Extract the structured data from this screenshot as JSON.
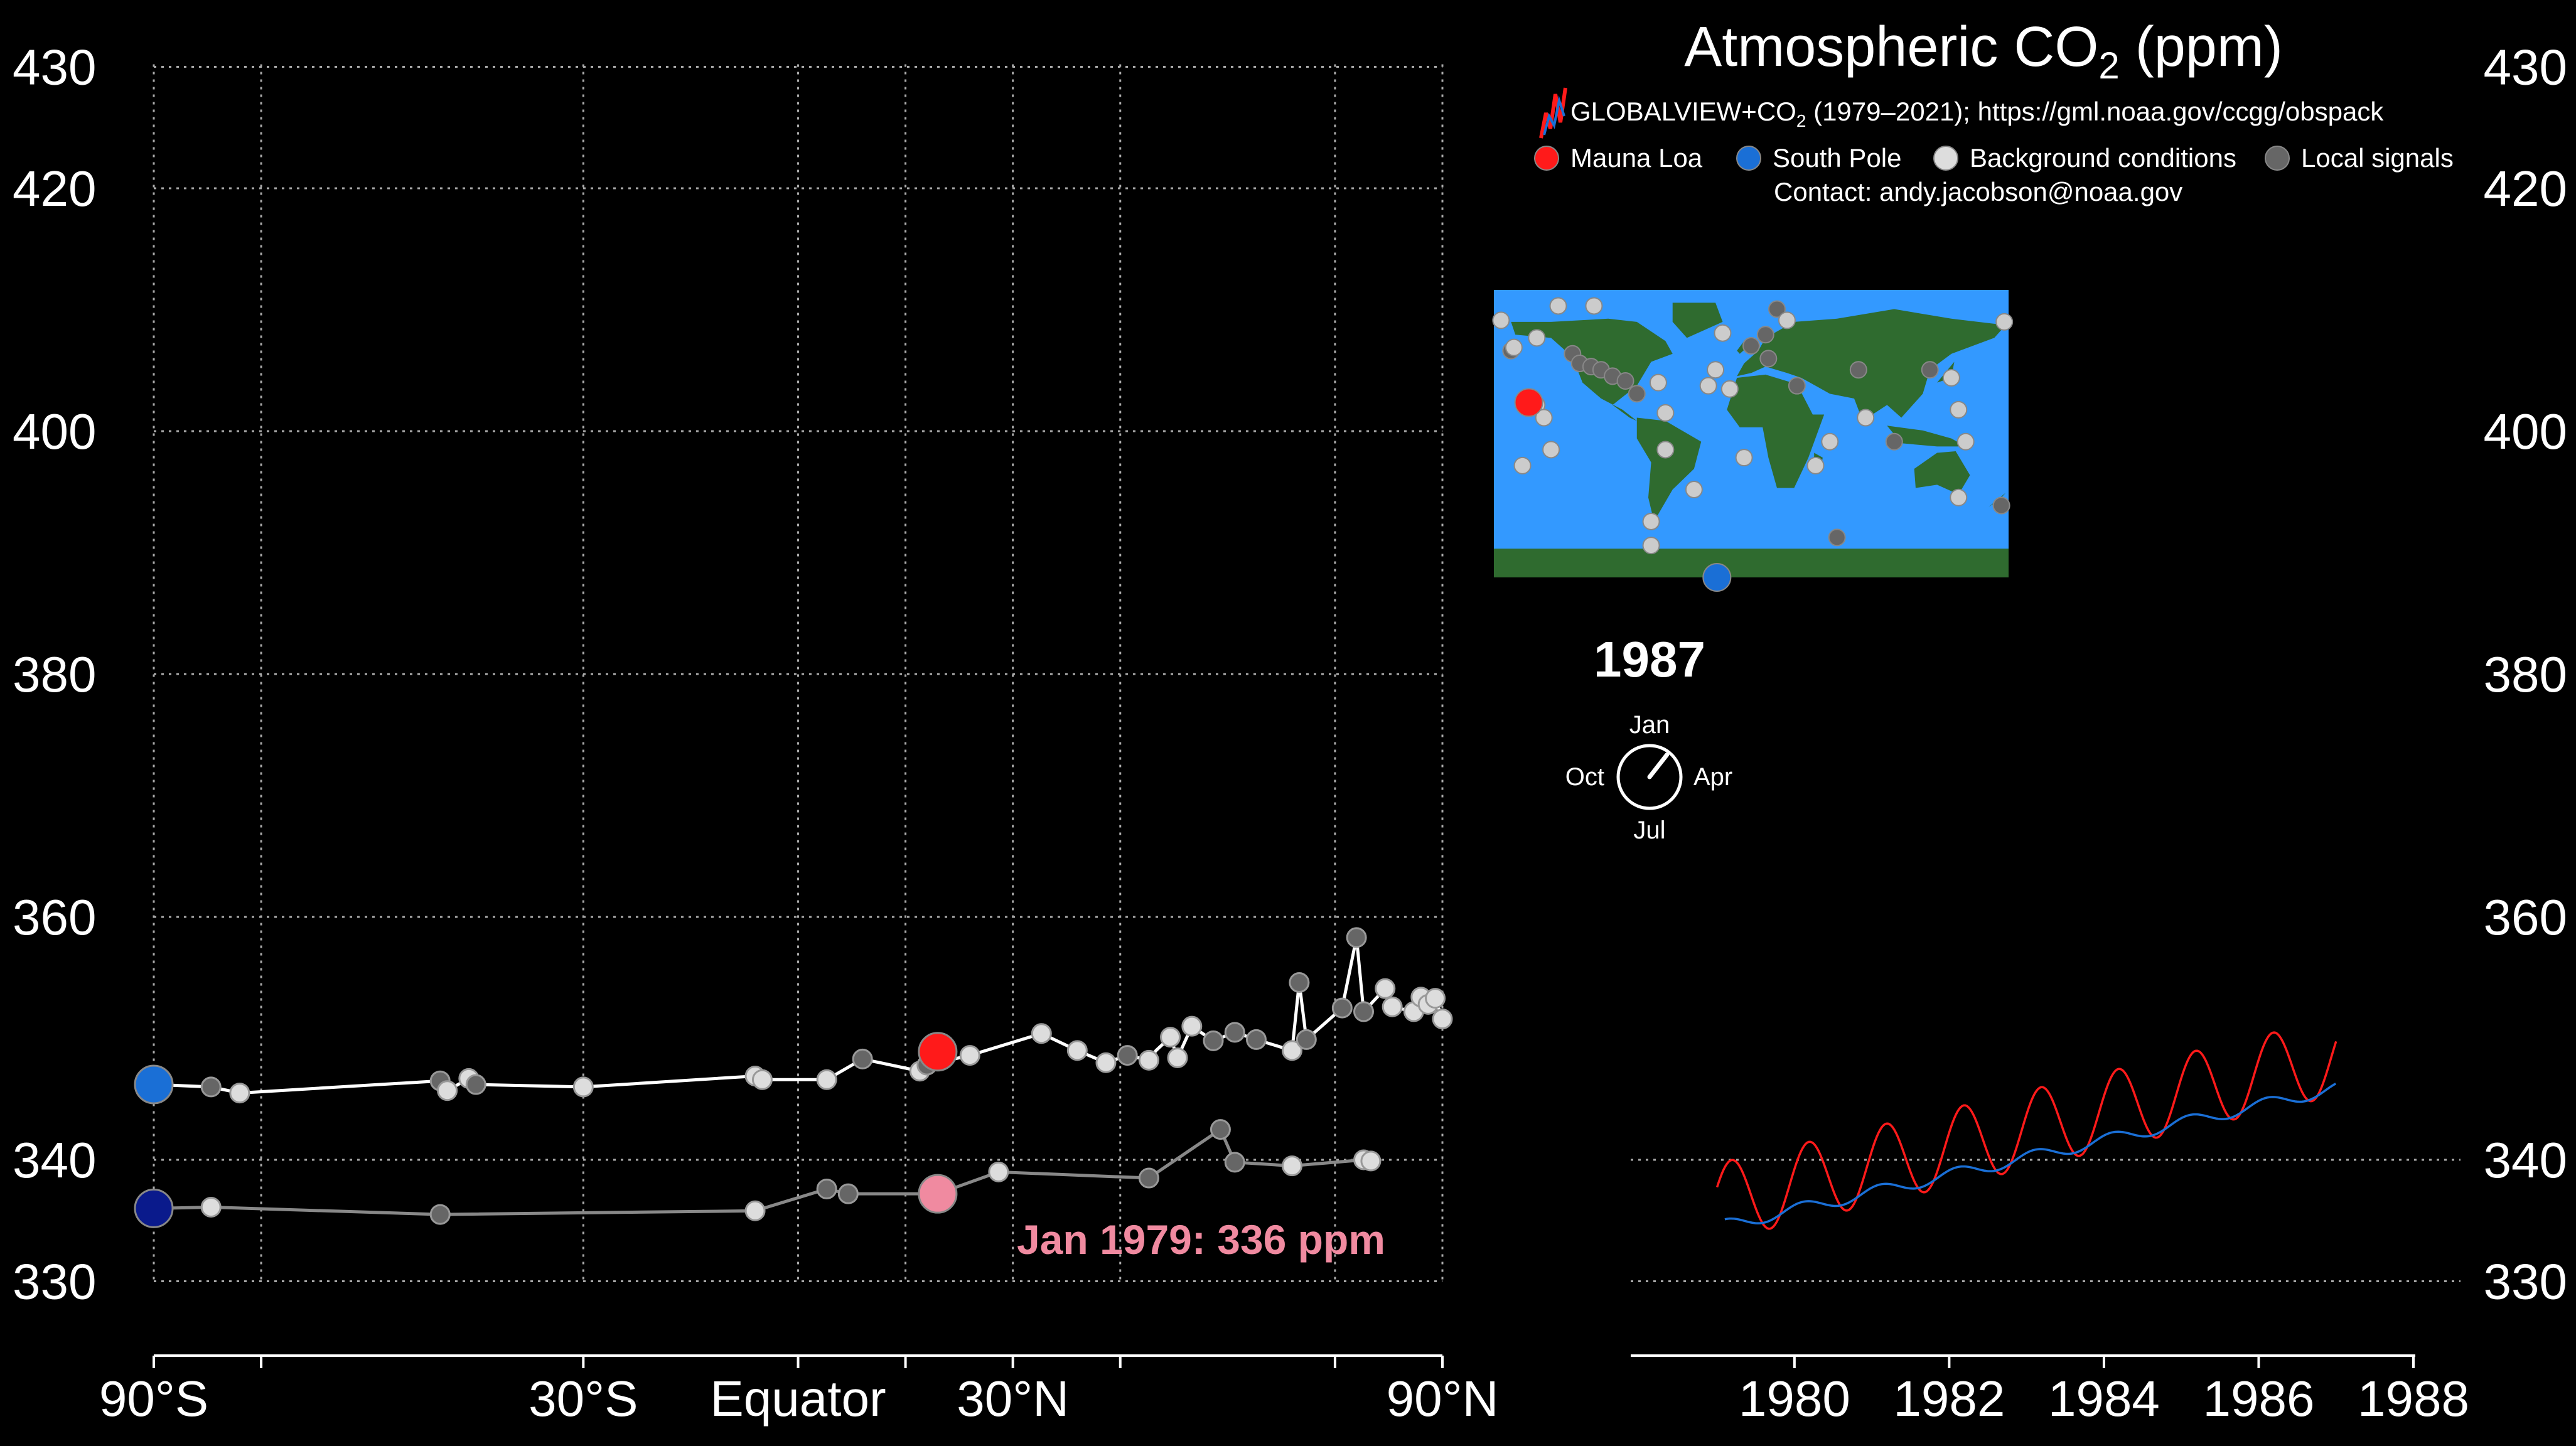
{
  "title": {
    "main": "Atmospheric CO",
    "sub": "2",
    "unit": " (ppm)"
  },
  "source": {
    "prefix": "GLOBALVIEW+CO",
    "sub": "2",
    "rest": " (1979–2021); https://gml.noaa.gov/ccgg/obspack"
  },
  "legend": [
    {
      "label": "Mauna Loa",
      "color": "#ff1a1a"
    },
    {
      "label": "South Pole",
      "color": "#1a6fd6"
    },
    {
      "label": "Background conditions",
      "color": "#dddddd"
    },
    {
      "label": "Local signals",
      "color": "#666666"
    }
  ],
  "contact": "Contact: andy.jacobson@noaa.gov",
  "year_display": "1987",
  "clock": {
    "top": "Jan",
    "right": "Apr",
    "bottom": "Jul",
    "left": "Oct",
    "month_fraction": 0.05
  },
  "annotation": "Jan 1979: 336 ppm",
  "colors": {
    "mauna_loa": "#ff1a1a",
    "south_pole": "#1a6fd6",
    "sp_1979": "#0a1a8c",
    "ml_1979": "#f08aa0",
    "ocean": "#3399ff",
    "land": "#2f6b2f"
  },
  "chart_data": [
    {
      "type": "line",
      "xlabel": "",
      "ylabel": "",
      "ylim": [
        325,
        432
      ],
      "xlim": [
        -90,
        90
      ],
      "x_ticks": [
        -90,
        -30,
        0,
        30,
        90
      ],
      "x_tick_labels": [
        "90°S",
        "30°S",
        "Equator",
        "30°N",
        "90°N"
      ],
      "y_ticks": [
        330,
        340,
        360,
        380,
        400,
        420,
        430
      ],
      "grid": true,
      "series": [
        {
          "points": [
            [
              -90,
              346.2
            ],
            [
              -82,
              346.0
            ],
            [
              -78,
              345.5
            ],
            [
              -50,
              346.5
            ],
            [
              -49,
              345.7
            ],
            [
              -46,
              346.7
            ],
            [
              -45,
              346.2
            ],
            [
              -30,
              346.0
            ],
            [
              -6,
              346.9
            ],
            [
              -5,
              346.6
            ],
            [
              4,
              346.6
            ],
            [
              9,
              348.3
            ],
            [
              17,
              347.3
            ],
            [
              18,
              347.8
            ],
            [
              24,
              348.6
            ],
            [
              34,
              350.4
            ],
            [
              39,
              349.0
            ],
            [
              43,
              348.0
            ],
            [
              46,
              348.6
            ],
            [
              49,
              348.2
            ],
            [
              50,
              349.0
            ],
            [
              52,
              350.1
            ],
            [
              53,
              348.4
            ],
            [
              55,
              351.0
            ],
            [
              58,
              349.8
            ],
            [
              61,
              350.5
            ],
            [
              64,
              349.9
            ],
            [
              69,
              349.0
            ],
            [
              70,
              354.6
            ],
            [
              71,
              349.9
            ],
            [
              76,
              352.5
            ],
            [
              78,
              358.3
            ],
            [
              79,
              352.2
            ],
            [
              82,
              354.1
            ],
            [
              83,
              352.6
            ],
            [
              86,
              352.2
            ],
            [
              87,
              353.4
            ],
            [
              88,
              352.8
            ],
            [
              89,
              353.3
            ],
            [
              90,
              351.6
            ]
          ],
          "markers": [
            [
              -82,
              "local"
            ],
            [
              -78,
              "bg"
            ],
            [
              -50,
              "local"
            ],
            [
              -49,
              "bg"
            ],
            [
              -46,
              "bg"
            ],
            [
              -45,
              "local"
            ],
            [
              -30,
              "bg"
            ],
            [
              -6,
              "bg"
            ],
            [
              -5,
              "bg"
            ],
            [
              4,
              "bg"
            ],
            [
              9,
              "local"
            ],
            [
              17,
              "bg"
            ],
            [
              18,
              "local"
            ],
            [
              24,
              "bg"
            ],
            [
              34,
              "bg"
            ],
            [
              39,
              "bg"
            ],
            [
              43,
              "bg"
            ],
            [
              46,
              "local"
            ],
            [
              49,
              "bg"
            ],
            [
              52,
              "bg"
            ],
            [
              53,
              "bg"
            ],
            [
              55,
              "bg"
            ],
            [
              58,
              "local"
            ],
            [
              61,
              "local"
            ],
            [
              64,
              "local"
            ],
            [
              69,
              "bg"
            ],
            [
              70,
              "local"
            ],
            [
              71,
              "local"
            ],
            [
              76,
              "local"
            ],
            [
              78,
              "local"
            ],
            [
              79,
              "local"
            ],
            [
              82,
              "bg"
            ],
            [
              83,
              "bg"
            ],
            [
              86,
              "bg"
            ],
            [
              87,
              "bg"
            ],
            [
              88,
              "bg"
            ],
            [
              89,
              "bg"
            ],
            [
              90,
              "bg"
            ]
          ],
          "mauna_loa": [
            19.5,
            348.9
          ],
          "south_pole": [
            -90,
            346.2
          ]
        },
        {
          "points": [
            [
              -90,
              336.0
            ],
            [
              -82,
              336.1
            ],
            [
              -50,
              335.5
            ],
            [
              -6,
              335.8
            ],
            [
              4,
              337.6
            ],
            [
              7,
              337.2
            ],
            [
              19.5,
              337.2
            ],
            [
              28,
              339.0
            ],
            [
              49,
              338.5
            ],
            [
              59,
              342.5
            ],
            [
              61,
              339.8
            ],
            [
              69,
              339.5
            ],
            [
              79,
              340.0
            ],
            [
              80,
              339.9
            ]
          ],
          "markers": [
            [
              -82,
              "bg"
            ],
            [
              -50,
              "local"
            ],
            [
              -6,
              "bg"
            ],
            [
              4,
              "local"
            ],
            [
              7,
              "local"
            ],
            [
              28,
              "bg"
            ],
            [
              49,
              "local"
            ],
            [
              59,
              "local"
            ],
            [
              61,
              "local"
            ],
            [
              69,
              "bg"
            ],
            [
              79,
              "bg"
            ],
            [
              80,
              "bg"
            ]
          ],
          "mauna_loa": [
            19.5,
            337.2
          ],
          "south_pole": [
            -90,
            336.0
          ]
        }
      ]
    },
    {
      "type": "line",
      "xlabel": "",
      "ylabel": "",
      "xlim": [
        1977.9,
        1988
      ],
      "ylim": [
        325,
        432
      ],
      "x_ticks": [
        1980,
        1982,
        1984,
        1986,
        1988
      ],
      "x_tick_labels": [
        "1980",
        "1982",
        "1984",
        "1986",
        "1988"
      ],
      "y_ticks": [
        330,
        340,
        360,
        380,
        400,
        420,
        430
      ],
      "series": [
        {
          "name": "Mauna Loa",
          "t_start": 1979.0,
          "t_end": 1987.0,
          "base": 336.5,
          "slope": 1.5,
          "amp": 3.2
        },
        {
          "name": "South Pole",
          "t_start": 1979.1,
          "t_end": 1987.0,
          "base": 334.6,
          "slope": 1.43,
          "amp": 0.5
        }
      ]
    }
  ],
  "map_stations": [
    [
      -175,
      71,
      "bg"
    ],
    [
      -168,
      52,
      "local"
    ],
    [
      -157,
      22,
      "bg"
    ],
    [
      -156,
      20,
      "bg"
    ],
    [
      -158,
      21,
      "local"
    ],
    [
      -153,
      19,
      "bg"
    ],
    [
      -150,
      18,
      "bg"
    ],
    [
      -145,
      10,
      "bg"
    ],
    [
      -140,
      -10,
      "bg"
    ],
    [
      -160,
      -20,
      "bg"
    ],
    [
      -166,
      54,
      "bg"
    ],
    [
      -150,
      60,
      "bg"
    ],
    [
      -135,
      80,
      "bg"
    ],
    [
      -110,
      80,
      "bg"
    ],
    [
      -125,
      50,
      "local"
    ],
    [
      -120,
      44,
      "local"
    ],
    [
      -112,
      42,
      "local"
    ],
    [
      -105,
      40,
      "local"
    ],
    [
      -97,
      36,
      "local"
    ],
    [
      -88,
      33,
      "local"
    ],
    [
      -80,
      25,
      "local"
    ],
    [
      -65,
      32,
      "bg"
    ],
    [
      -60,
      13,
      "bg"
    ],
    [
      -30,
      30,
      "bg"
    ],
    [
      -25,
      40,
      "bg"
    ],
    [
      -20,
      63,
      "bg"
    ],
    [
      -15,
      28,
      "bg"
    ],
    [
      10,
      62,
      "local"
    ],
    [
      18,
      78,
      "local"
    ],
    [
      25,
      71,
      "bg"
    ],
    [
      12,
      47,
      "local"
    ],
    [
      0,
      55,
      "local"
    ],
    [
      32,
      30,
      "local"
    ],
    [
      45,
      -20,
      "bg"
    ],
    [
      55,
      -5,
      "bg"
    ],
    [
      60,
      -65,
      "local"
    ],
    [
      75,
      40,
      "local"
    ],
    [
      80,
      10,
      "bg"
    ],
    [
      100,
      -5,
      "local"
    ],
    [
      125,
      40,
      "local"
    ],
    [
      140,
      35,
      "bg"
    ],
    [
      145,
      15,
      "bg"
    ],
    [
      145,
      -40,
      "bg"
    ],
    [
      150,
      -5,
      "bg"
    ],
    [
      177,
      70,
      "bg"
    ],
    [
      175,
      -45,
      "local"
    ],
    [
      -70,
      -55,
      "bg"
    ],
    [
      -70,
      -70,
      "bg"
    ],
    [
      -5,
      -15,
      "bg"
    ],
    [
      -40,
      -35,
      "bg"
    ],
    [
      -60,
      -10,
      "bg"
    ]
  ]
}
